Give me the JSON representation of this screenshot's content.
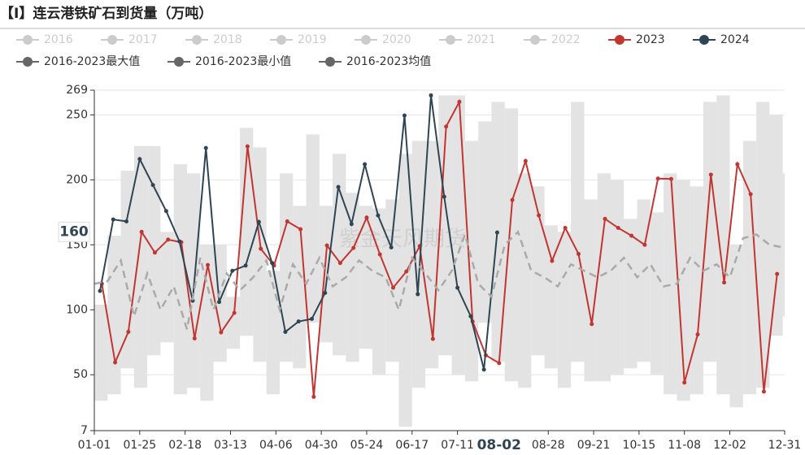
{
  "chart_data": {
    "type": "line",
    "title": "【I】连云港铁矿石到货量（万吨）",
    "watermark": "紫金天风期货",
    "xlim": [
      0,
      365
    ],
    "xticks": [
      {
        "value": 0,
        "label": "01-01"
      },
      {
        "value": 24,
        "label": "01-25"
      },
      {
        "value": 48,
        "label": "02-18"
      },
      {
        "value": 72,
        "label": "03-13"
      },
      {
        "value": 96,
        "label": "04-06"
      },
      {
        "value": 120,
        "label": "04-30"
      },
      {
        "value": 144,
        "label": "05-24"
      },
      {
        "value": 168,
        "label": "06-17"
      },
      {
        "value": 192,
        "label": "07-11"
      },
      {
        "value": 240,
        "label": "08-28"
      },
      {
        "value": 264,
        "label": "09-21"
      },
      {
        "value": 288,
        "label": "10-15"
      },
      {
        "value": 312,
        "label": "11-08"
      },
      {
        "value": 336,
        "label": "12-02"
      },
      {
        "value": 365,
        "label": "12-31"
      }
    ],
    "ylim": [
      7,
      269
    ],
    "yticks": [
      7,
      50,
      100,
      150,
      200,
      250,
      269
    ],
    "grid": true,
    "pointer": {
      "x": 214,
      "x_label": "08-02",
      "y_label": 160
    },
    "legend_inactive": [
      "2016",
      "2017",
      "2018",
      "2019",
      "2020",
      "2021",
      "2022"
    ],
    "series": [
      {
        "name": "2023",
        "color": "#c23531",
        "style": "line",
        "x": [
          4,
          11,
          18,
          25,
          32,
          39,
          46,
          53,
          60,
          67,
          74,
          81,
          88,
          95,
          102,
          109,
          116,
          123,
          130,
          137,
          144,
          151,
          158,
          165,
          172,
          179,
          186,
          193,
          200,
          207,
          214,
          221,
          228,
          235,
          242,
          249,
          256,
          263,
          270,
          277,
          284,
          291,
          298,
          305,
          312,
          319,
          326,
          333,
          340,
          347,
          354,
          361
        ],
        "values": [
          120,
          59.5,
          83,
          160,
          144,
          154,
          152,
          78,
          134.5,
          82.6,
          97.6,
          225.8,
          147,
          134,
          168,
          162,
          33,
          149.5,
          136,
          147.6,
          171,
          142.6,
          117,
          129.5,
          149,
          77.6,
          241,
          260,
          91,
          65,
          59,
          184.5,
          214.5,
          172.6,
          137.6,
          163,
          143,
          89,
          170,
          163,
          157,
          150,
          201,
          200.7,
          44,
          81,
          204,
          121,
          212,
          189,
          37,
          127.6
        ]
      },
      {
        "name": "2024",
        "color": "#2f4554",
        "style": "line",
        "x": [
          3,
          10,
          17,
          24,
          31,
          38,
          45,
          52,
          59,
          66,
          73,
          80,
          87,
          94,
          101,
          108,
          115,
          122,
          129,
          136,
          143,
          150,
          157,
          164,
          171,
          178,
          185,
          192,
          199,
          206,
          213
        ],
        "values": [
          114.5,
          169.5,
          168,
          216,
          196,
          176,
          152.6,
          107,
          224.5,
          106,
          130,
          134,
          167.6,
          136,
          83,
          91,
          93,
          113,
          194.5,
          166,
          212,
          172.6,
          148,
          249.5,
          112,
          265,
          187,
          117,
          95,
          54,
          159.5
        ]
      },
      {
        "name": "2016-2023最大值",
        "color": "#666666",
        "style": "band-upper",
        "x": [
          0,
          7,
          14,
          21,
          28,
          35,
          42,
          49,
          56,
          63,
          70,
          77,
          84,
          91,
          98,
          105,
          112,
          119,
          126,
          133,
          140,
          147,
          154,
          161,
          168,
          175,
          182,
          189,
          196,
          203,
          210,
          217,
          224,
          231,
          238,
          245,
          252,
          259,
          266,
          273,
          280,
          287,
          294,
          301,
          308,
          315,
          322,
          329,
          336,
          343,
          350,
          357,
          364
        ],
        "values": [
          104,
          157,
          207,
          226,
          226,
          160,
          212,
          205,
          150,
          150,
          110,
          240,
          225,
          130,
          205,
          180,
          235,
          180,
          220,
          190,
          180,
          178,
          185,
          220,
          230,
          230,
          265,
          265,
          230,
          245,
          260,
          255,
          205,
          195,
          165,
          160,
          260,
          185,
          205,
          200,
          170,
          185,
          175,
          205,
          200,
          195,
          260,
          265,
          150,
          230,
          260,
          250,
          205
        ]
      },
      {
        "name": "2016-2023最小值",
        "color": "#666666",
        "style": "band-lower",
        "x": [
          0,
          7,
          14,
          21,
          28,
          35,
          42,
          49,
          56,
          63,
          70,
          77,
          84,
          91,
          98,
          105,
          112,
          119,
          126,
          133,
          140,
          147,
          154,
          161,
          168,
          175,
          182,
          189,
          196,
          203,
          210,
          217,
          224,
          231,
          238,
          245,
          252,
          259,
          266,
          273,
          280,
          287,
          294,
          301,
          308,
          315,
          322,
          329,
          336,
          343,
          350,
          357,
          364
        ],
        "values": [
          30,
          35,
          55,
          40,
          65,
          75,
          35,
          40,
          30,
          60,
          70,
          80,
          60,
          35,
          60,
          55,
          90,
          75,
          65,
          60,
          70,
          50,
          60,
          10,
          40,
          55,
          65,
          50,
          45,
          90,
          60,
          45,
          40,
          65,
          55,
          40,
          60,
          45,
          45,
          50,
          55,
          60,
          50,
          35,
          30,
          35,
          60,
          35,
          25,
          35,
          40,
          80,
          95
        ]
      },
      {
        "name": "2016-2023均值",
        "color": "#666666",
        "style": "dashed",
        "x": [
          0,
          7,
          14,
          21,
          28,
          35,
          42,
          49,
          56,
          63,
          70,
          77,
          84,
          91,
          98,
          105,
          112,
          119,
          126,
          133,
          140,
          147,
          154,
          161,
          168,
          175,
          182,
          189,
          196,
          203,
          210,
          217,
          224,
          231,
          238,
          245,
          252,
          259,
          266,
          273,
          280,
          287,
          294,
          301,
          308,
          315,
          322,
          329,
          336,
          343,
          350,
          357,
          364
        ],
        "values": [
          120,
          122,
          138,
          95,
          128,
          100,
          118,
          85,
          140,
          100,
          128,
          115,
          125,
          138,
          100,
          135,
          120,
          140,
          118,
          125,
          138,
          130,
          125,
          100,
          140,
          128,
          115,
          130,
          158,
          120,
          110,
          150,
          160,
          130,
          125,
          118,
          135,
          130,
          125,
          130,
          140,
          125,
          135,
          118,
          120,
          140,
          130,
          135,
          125,
          155,
          158,
          150,
          148
        ]
      }
    ]
  }
}
